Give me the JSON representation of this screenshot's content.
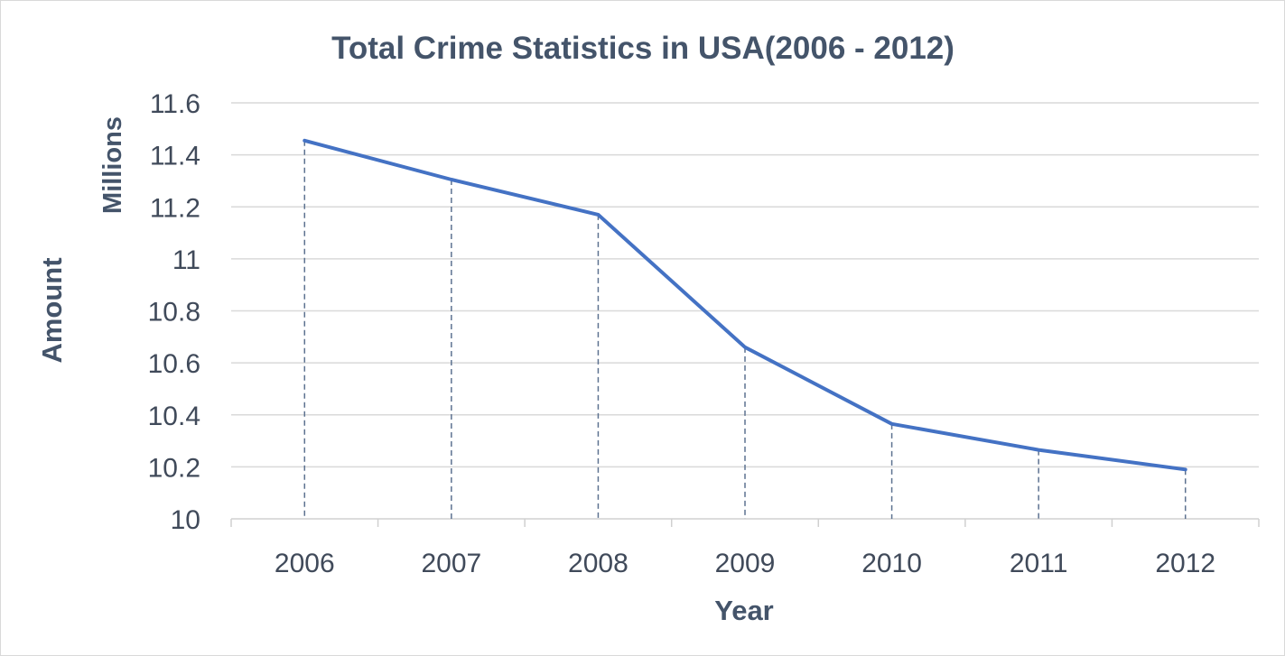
{
  "chart_data": {
    "type": "line",
    "title": "Total Crime Statistics in USA(2006 - 2012)",
    "xlabel": "Year",
    "ylabel": "Amount",
    "y_unit_label": "Millions",
    "categories": [
      "2006",
      "2007",
      "2008",
      "2009",
      "2010",
      "2011",
      "2012"
    ],
    "series": [
      {
        "values": [
          11.455,
          11.305,
          11.17,
          10.66,
          10.365,
          10.265,
          10.19
        ]
      }
    ],
    "ylim": [
      10,
      11.6
    ],
    "y_ticks": [
      "10",
      "10.2",
      "10.4",
      "10.6",
      "10.8",
      "11",
      "11.2",
      "11.4",
      "11.6"
    ],
    "grid": true,
    "drop_lines": true,
    "line_color": "#4472c4"
  }
}
